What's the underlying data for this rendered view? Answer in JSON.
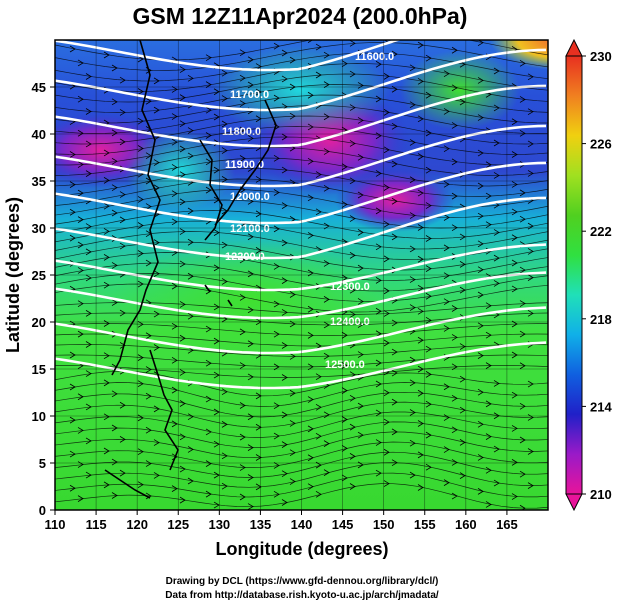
{
  "title": "GSM 12Z11Apr2024 (200.0hPa)",
  "x_axis": {
    "label": "Longitude (degrees)",
    "min": 110,
    "max": 170,
    "ticks": [
      "110",
      "115",
      "120",
      "125",
      "130",
      "135",
      "140",
      "145",
      "150",
      "155",
      "160",
      "165"
    ]
  },
  "y_axis": {
    "label": "Latitude  (degrees)",
    "min": 0,
    "max": 50,
    "ticks": [
      "0",
      "5",
      "10",
      "15",
      "20",
      "25",
      "30",
      "35",
      "40",
      "45"
    ]
  },
  "colorbar": {
    "min": 210,
    "max": 230,
    "labels": [
      "230",
      "226",
      "222",
      "218",
      "214",
      "210"
    ],
    "colors": [
      "#e8149a",
      "#9a1ac8",
      "#2020c8",
      "#1060e0",
      "#10b0e8",
      "#20e0b8",
      "#30e040",
      "#50d020",
      "#a0e020",
      "#f0d010",
      "#f08020",
      "#e83020"
    ]
  },
  "contour_labels": [
    "11600.0",
    "11700.0",
    "11800.0",
    "11900.0",
    "12000.0",
    "12100.0",
    "12200.0",
    "12300.0",
    "12400.0",
    "12500.0"
  ],
  "credits": {
    "line1": "Drawing by DCL (https://www.gfd-dennou.org/library/dcl/)",
    "line2": "Data from http://database.rish.kyoto-u.ac.jp/arch/jmadata/"
  }
}
